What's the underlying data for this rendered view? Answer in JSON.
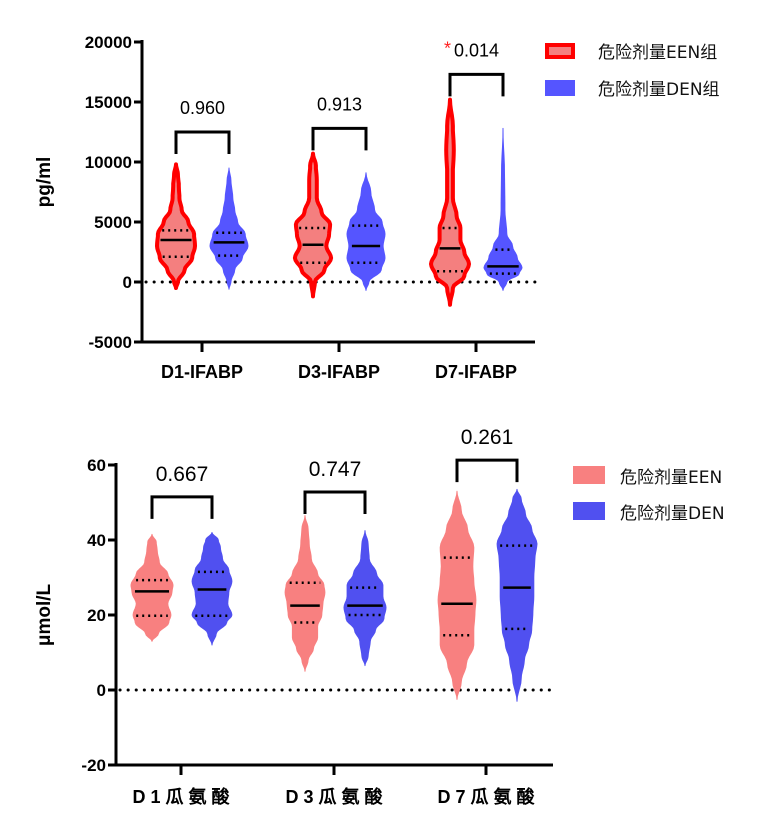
{
  "chart_data": [
    {
      "type": "violin",
      "ylabel": "pg/ml",
      "ylim": [
        -5000,
        20000
      ],
      "yticks": [
        -5000,
        0,
        5000,
        10000,
        15000,
        20000
      ],
      "ytick_labels": [
        "-5000",
        "0",
        "5000",
        "10000",
        "15000",
        "20000"
      ],
      "reference_line": 0,
      "categories": [
        "D1-IFABP",
        "D3-IFABP",
        "D7-IFABP"
      ],
      "legend": {
        "placement": "top-right",
        "entries": [
          "危险剂量EEN组",
          "危险剂量DEN组"
        ]
      },
      "series": [
        {
          "name": "危险剂量EEN组",
          "stroke": "#ff0000",
          "fill": "#f47f7f",
          "violins": [
            {
              "min": -500,
              "max": 9800,
              "median": 3500,
              "q1": 2100,
              "q3": 4300,
              "density": [
                [
                  -500,
                  0
                ],
                [
                  0,
                  0.1
                ],
                [
                  1000,
                  0.45
                ],
                [
                  2000,
                  0.85
                ],
                [
                  3000,
                  1
                ],
                [
                  4000,
                  0.95
                ],
                [
                  5000,
                  0.65
                ],
                [
                  6000,
                  0.3
                ],
                [
                  7000,
                  0.18
                ],
                [
                  8000,
                  0.15
                ],
                [
                  9000,
                  0.1
                ],
                [
                  9800,
                  0
                ]
              ]
            },
            {
              "min": -1200,
              "max": 10700,
              "median": 3100,
              "q1": 1600,
              "q3": 4500,
              "density": [
                [
                  -1200,
                  0
                ],
                [
                  0,
                  0.1
                ],
                [
                  1000,
                  0.6
                ],
                [
                  2000,
                  0.95
                ],
                [
                  3000,
                  0.7
                ],
                [
                  4000,
                  0.85
                ],
                [
                  4800,
                  0.9
                ],
                [
                  5800,
                  0.45
                ],
                [
                  7000,
                  0.2
                ],
                [
                  8500,
                  0.2
                ],
                [
                  9700,
                  0.15
                ],
                [
                  10700,
                  0
                ]
              ]
            },
            {
              "min": -1900,
              "max": 15200,
              "median": 2800,
              "q1": 900,
              "q3": 4500,
              "density": [
                [
                  -1900,
                  0
                ],
                [
                  -500,
                  0.15
                ],
                [
                  500,
                  0.75
                ],
                [
                  1500,
                  1
                ],
                [
                  2500,
                  0.75
                ],
                [
                  3500,
                  0.55
                ],
                [
                  4500,
                  0.55
                ],
                [
                  5500,
                  0.35
                ],
                [
                  7000,
                  0.15
                ],
                [
                  9000,
                  0.15
                ],
                [
                  11000,
                  0.2
                ],
                [
                  13000,
                  0.15
                ],
                [
                  15200,
                  0
                ]
              ]
            }
          ]
        },
        {
          "name": "危险剂量DEN组",
          "stroke": "#5555ff",
          "fill": "#5555ff",
          "violins": [
            {
              "min": -600,
              "max": 9500,
              "median": 3300,
              "q1": 2200,
              "q3": 4100,
              "density": [
                [
                  -600,
                  0
                ],
                [
                  0,
                  0.1
                ],
                [
                  1000,
                  0.3
                ],
                [
                  2000,
                  0.7
                ],
                [
                  3000,
                  1
                ],
                [
                  4000,
                  0.85
                ],
                [
                  5000,
                  0.45
                ],
                [
                  6000,
                  0.3
                ],
                [
                  7000,
                  0.2
                ],
                [
                  8500,
                  0.1
                ],
                [
                  9500,
                  0
                ]
              ]
            },
            {
              "min": -700,
              "max": 9100,
              "median": 3000,
              "q1": 1600,
              "q3": 4700,
              "density": [
                [
                  -700,
                  0
                ],
                [
                  0,
                  0.15
                ],
                [
                  1000,
                  0.8
                ],
                [
                  2000,
                  1
                ],
                [
                  3000,
                  0.9
                ],
                [
                  4000,
                  1
                ],
                [
                  5000,
                  0.85
                ],
                [
                  6000,
                  0.45
                ],
                [
                  7500,
                  0.25
                ],
                [
                  9100,
                  0
                ]
              ]
            },
            {
              "min": -700,
              "max": 12800,
              "median": 1300,
              "q1": 700,
              "q3": 2700,
              "density": [
                [
                  -700,
                  0
                ],
                [
                  0,
                  0.2
                ],
                [
                  700,
                  0.85
                ],
                [
                  1200,
                  1
                ],
                [
                  2000,
                  0.75
                ],
                [
                  3000,
                  0.5
                ],
                [
                  4000,
                  0.2
                ],
                [
                  6000,
                  0.1
                ],
                [
                  9000,
                  0.08
                ],
                [
                  12800,
                  0
                ]
              ]
            }
          ]
        }
      ],
      "comparisons": [
        {
          "label": "0.960",
          "bracket_y": 12500,
          "significant": false
        },
        {
          "label": "0.913",
          "bracket_y": 12800,
          "significant": false
        },
        {
          "label": "0.014",
          "bracket_y": 17300,
          "significant": true,
          "marker": "*"
        }
      ]
    },
    {
      "type": "violin",
      "ylabel": "μmol/L",
      "ylim": [
        -20,
        60
      ],
      "yticks": [
        -20,
        0,
        20,
        40,
        60
      ],
      "ytick_labels": [
        "-20",
        "0",
        "20",
        "40",
        "60"
      ],
      "reference_line": 0,
      "categories": [
        "D 1 瓜 氨 酸",
        "D 3 瓜 氨 酸",
        "D 7 瓜 氨 酸"
      ],
      "legend": {
        "placement": "top-right",
        "entries": [
          "危险剂量EEN",
          "危险剂量DEN"
        ]
      },
      "series": [
        {
          "name": "危险剂量EEN",
          "stroke": "#f88080",
          "fill": "#f88080",
          "violins": [
            {
              "min": 13,
              "max": 41.5,
              "median": 26.3,
              "q1": 19.8,
              "q3": 29.3,
              "density": [
                [
                  13,
                  0
                ],
                [
                  15,
                  0.3
                ],
                [
                  18,
                  0.8
                ],
                [
                  20,
                  0.9
                ],
                [
                  23,
                  0.75
                ],
                [
                  26,
                  0.95
                ],
                [
                  28,
                  1
                ],
                [
                  31,
                  0.75
                ],
                [
                  34,
                  0.35
                ],
                [
                  37,
                  0.25
                ],
                [
                  39.5,
                  0.2
                ],
                [
                  41.5,
                  0
                ]
              ]
            },
            {
              "min": 5,
              "max": 46.5,
              "median": 22.5,
              "q1": 18,
              "q3": 28.6,
              "density": [
                [
                  5,
                  0
                ],
                [
                  8,
                  0.15
                ],
                [
                  11,
                  0.4
                ],
                [
                  14,
                  0.6
                ],
                [
                  17,
                  0.6
                ],
                [
                  20,
                  0.8
                ],
                [
                  23,
                  0.85
                ],
                [
                  26,
                  0.95
                ],
                [
                  28,
                  0.9
                ],
                [
                  31,
                  0.6
                ],
                [
                  35,
                  0.3
                ],
                [
                  39,
                  0.2
                ],
                [
                  43,
                  0.15
                ],
                [
                  46.5,
                  0
                ]
              ]
            },
            {
              "min": -2.5,
              "max": 53,
              "median": 23,
              "q1": 14.6,
              "q3": 35.3,
              "density": [
                [
                  -2.5,
                  0
                ],
                [
                  2,
                  0.2
                ],
                [
                  7,
                  0.45
                ],
                [
                  12,
                  0.8
                ],
                [
                  16,
                  0.8
                ],
                [
                  20,
                  0.85
                ],
                [
                  24,
                  0.9
                ],
                [
                  29,
                  0.8
                ],
                [
                  33,
                  0.75
                ],
                [
                  38,
                  0.8
                ],
                [
                  43,
                  0.5
                ],
                [
                  48,
                  0.2
                ],
                [
                  53,
                  0
                ]
              ]
            }
          ]
        },
        {
          "name": "危险剂量DEN",
          "stroke": "#5050f0",
          "fill": "#5050f0",
          "violins": [
            {
              "min": 12,
              "max": 42,
              "median": 26.8,
              "q1": 19.8,
              "q3": 31.5,
              "density": [
                [
                  12,
                  0
                ],
                [
                  15,
                  0.2
                ],
                [
                  18,
                  0.7
                ],
                [
                  20,
                  0.95
                ],
                [
                  23,
                  0.75
                ],
                [
                  26,
                  0.8
                ],
                [
                  29,
                  0.95
                ],
                [
                  32,
                  0.8
                ],
                [
                  35,
                  0.5
                ],
                [
                  38,
                  0.4
                ],
                [
                  40,
                  0.3
                ],
                [
                  42,
                  0
                ]
              ]
            },
            {
              "min": 6.5,
              "max": 42.5,
              "median": 22.5,
              "q1": 20,
              "q3": 27.3,
              "density": [
                [
                  6.5,
                  0
                ],
                [
                  9,
                  0.15
                ],
                [
                  13,
                  0.25
                ],
                [
                  16,
                  0.5
                ],
                [
                  19,
                  0.9
                ],
                [
                  22,
                  1
                ],
                [
                  25,
                  0.85
                ],
                [
                  28,
                  0.85
                ],
                [
                  31,
                  0.55
                ],
                [
                  35,
                  0.2
                ],
                [
                  39,
                  0.15
                ],
                [
                  42.5,
                  0
                ]
              ]
            },
            {
              "min": -3,
              "max": 53.5,
              "median": 27.3,
              "q1": 16.3,
              "q3": 38.5,
              "density": [
                [
                  -3,
                  0
                ],
                [
                  3,
                  0.2
                ],
                [
                  8,
                  0.35
                ],
                [
                  12,
                  0.55
                ],
                [
                  16,
                  0.7
                ],
                [
                  20,
                  0.75
                ],
                [
                  25,
                  0.8
                ],
                [
                  30,
                  0.8
                ],
                [
                  35,
                  0.85
                ],
                [
                  39,
                  0.95
                ],
                [
                  43,
                  0.7
                ],
                [
                  47,
                  0.4
                ],
                [
                  51,
                  0.2
                ],
                [
                  53.5,
                  0
                ]
              ]
            }
          ]
        }
      ],
      "comparisons": [
        {
          "label": "0.667",
          "bracket_y": 51.5,
          "significant": false
        },
        {
          "label": "0.747",
          "bracket_y": 52.8,
          "significant": false
        },
        {
          "label": "0.261",
          "bracket_y": 61.3,
          "significant": false
        }
      ]
    }
  ]
}
